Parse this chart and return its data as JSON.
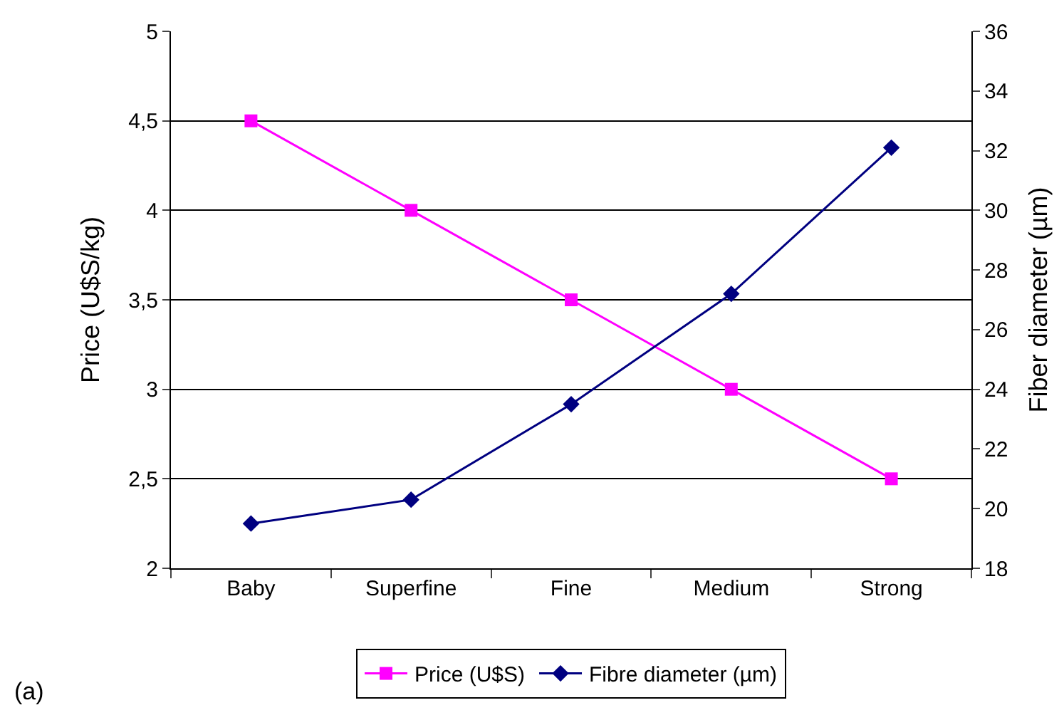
{
  "chart_data": {
    "type": "line",
    "ylabel": "Price (U$S/kg)",
    "y2label": "Fiber diameter (µm)",
    "categories": [
      "Baby",
      "Superfine",
      "Fine",
      "Medium",
      "Strong"
    ],
    "series": [
      {
        "name": "Price (U$S)",
        "color": "#ff00ff",
        "marker": "square",
        "values": [
          4.5,
          4,
          3.5,
          3,
          2.5
        ]
      },
      {
        "name": "Fibre diameter (µm)",
        "color": "#000080",
        "marker": "diamond",
        "axis": "y2",
        "values": [
          19.5,
          20.3,
          23.5,
          27.2,
          32.1
        ]
      }
    ],
    "ylim": [
      2,
      5
    ],
    "yticks": [
      2,
      {
        "value": 2.5,
        "label": "2,5"
      },
      3,
      {
        "value": 3.5,
        "label": "3,5"
      },
      4,
      {
        "value": 4.5,
        "label": "4,5"
      },
      5
    ],
    "y2lim": [
      18,
      36
    ],
    "y2ticks": [
      18,
      20,
      22,
      24,
      26,
      28,
      30,
      32,
      34,
      36
    ],
    "grid": "y",
    "legend": "bottom",
    "annotations": [
      "(a)"
    ]
  }
}
